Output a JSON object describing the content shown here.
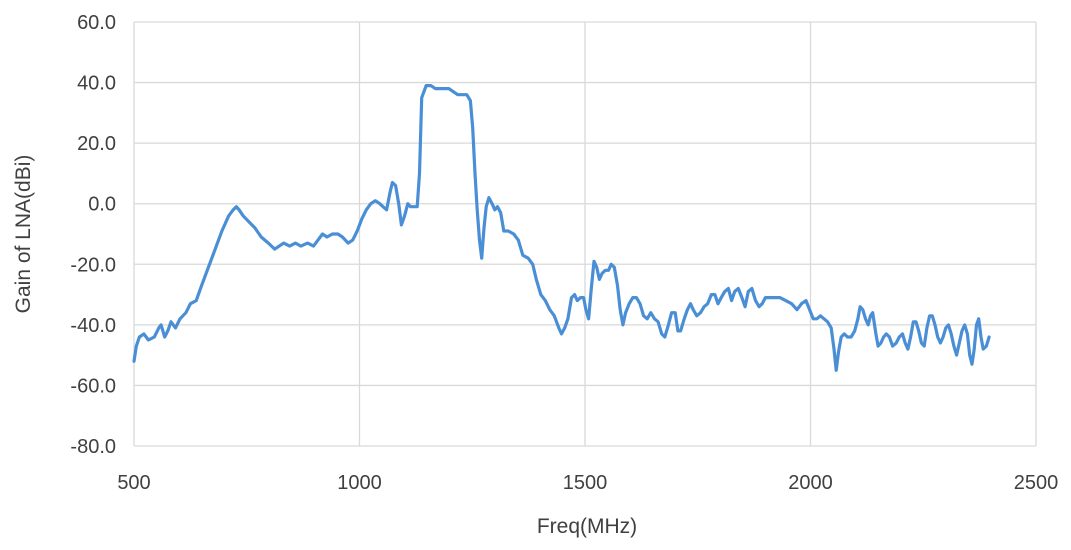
{
  "chart_data": {
    "type": "line",
    "title": "",
    "xlabel": "Freq(MHz)",
    "ylabel": "Gain of LNA(dBi)",
    "xlim": [
      500,
      2500
    ],
    "ylim": [
      -80,
      60
    ],
    "x_ticks": [
      500,
      1000,
      1500,
      2000,
      2500
    ],
    "x_tick_labels": [
      "500",
      "1000",
      "1500",
      "2000",
      "2500"
    ],
    "y_ticks": [
      60,
      40,
      20,
      0,
      -20,
      -40,
      -60,
      -80
    ],
    "y_tick_labels": [
      "60.0",
      "40.0",
      "20.0",
      "0.0",
      "-20.0",
      "-40.0",
      "-60.0",
      "-80.0"
    ],
    "grid": true,
    "legend": "none",
    "colors": {
      "line": "#4a8fd6",
      "grid": "#d9d9d9",
      "text": "#404040"
    },
    "series": [
      {
        "points": [
          [
            500,
            -52
          ],
          [
            505,
            -47
          ],
          [
            512,
            -44
          ],
          [
            522,
            -43
          ],
          [
            532,
            -45
          ],
          [
            545,
            -44
          ],
          [
            555,
            -41
          ],
          [
            560,
            -40
          ],
          [
            568,
            -44
          ],
          [
            575,
            -42
          ],
          [
            582,
            -39
          ],
          [
            592,
            -41
          ],
          [
            602,
            -38
          ],
          [
            615,
            -36
          ],
          [
            625,
            -33
          ],
          [
            638,
            -32
          ],
          [
            650,
            -27
          ],
          [
            665,
            -21
          ],
          [
            680,
            -15
          ],
          [
            695,
            -9
          ],
          [
            710,
            -4
          ],
          [
            720,
            -2
          ],
          [
            727,
            -1
          ],
          [
            733,
            -2
          ],
          [
            742,
            -4
          ],
          [
            755,
            -6
          ],
          [
            768,
            -8
          ],
          [
            782,
            -11
          ],
          [
            798,
            -13
          ],
          [
            812,
            -15
          ],
          [
            822,
            -14
          ],
          [
            832,
            -13
          ],
          [
            845,
            -14
          ],
          [
            858,
            -13
          ],
          [
            870,
            -14
          ],
          [
            885,
            -13
          ],
          [
            898,
            -14
          ],
          [
            908,
            -12
          ],
          [
            918,
            -10
          ],
          [
            928,
            -11
          ],
          [
            940,
            -10
          ],
          [
            952,
            -10
          ],
          [
            962,
            -11
          ],
          [
            975,
            -13
          ],
          [
            985,
            -12
          ],
          [
            995,
            -9
          ],
          [
            1005,
            -5
          ],
          [
            1015,
            -2
          ],
          [
            1025,
            0
          ],
          [
            1035,
            1
          ],
          [
            1045,
            0
          ],
          [
            1052,
            -1
          ],
          [
            1060,
            -2
          ],
          [
            1068,
            4
          ],
          [
            1073,
            7
          ],
          [
            1080,
            6
          ],
          [
            1087,
            0
          ],
          [
            1093,
            -7
          ],
          [
            1100,
            -4
          ],
          [
            1107,
            0
          ],
          [
            1113,
            -1
          ],
          [
            1120,
            -1
          ],
          [
            1128,
            -1
          ],
          [
            1133,
            10
          ],
          [
            1138,
            35
          ],
          [
            1148,
            39
          ],
          [
            1158,
            39
          ],
          [
            1168,
            38
          ],
          [
            1178,
            38
          ],
          [
            1188,
            38
          ],
          [
            1198,
            38
          ],
          [
            1208,
            37
          ],
          [
            1218,
            36
          ],
          [
            1228,
            36
          ],
          [
            1238,
            36
          ],
          [
            1246,
            34
          ],
          [
            1251,
            25
          ],
          [
            1256,
            10
          ],
          [
            1261,
            -2
          ],
          [
            1266,
            -12
          ],
          [
            1271,
            -18
          ],
          [
            1276,
            -8
          ],
          [
            1281,
            -1
          ],
          [
            1287,
            2
          ],
          [
            1294,
            0
          ],
          [
            1300,
            -2
          ],
          [
            1306,
            -1
          ],
          [
            1313,
            -3
          ],
          [
            1320,
            -9
          ],
          [
            1330,
            -9
          ],
          [
            1342,
            -10
          ],
          [
            1352,
            -12
          ],
          [
            1362,
            -17
          ],
          [
            1374,
            -18
          ],
          [
            1384,
            -20
          ],
          [
            1392,
            -25
          ],
          [
            1402,
            -30
          ],
          [
            1412,
            -32
          ],
          [
            1422,
            -35
          ],
          [
            1432,
            -37
          ],
          [
            1442,
            -41
          ],
          [
            1448,
            -43
          ],
          [
            1455,
            -41
          ],
          [
            1462,
            -38
          ],
          [
            1470,
            -31
          ],
          [
            1477,
            -30
          ],
          [
            1483,
            -32
          ],
          [
            1490,
            -31
          ],
          [
            1497,
            -31
          ],
          [
            1502,
            -35
          ],
          [
            1508,
            -38
          ],
          [
            1514,
            -28
          ],
          [
            1520,
            -19
          ],
          [
            1526,
            -21
          ],
          [
            1532,
            -25
          ],
          [
            1538,
            -23
          ],
          [
            1545,
            -22
          ],
          [
            1552,
            -22
          ],
          [
            1558,
            -20
          ],
          [
            1565,
            -21
          ],
          [
            1572,
            -27
          ],
          [
            1578,
            -35
          ],
          [
            1584,
            -40
          ],
          [
            1590,
            -36
          ],
          [
            1598,
            -33
          ],
          [
            1606,
            -31
          ],
          [
            1614,
            -31
          ],
          [
            1622,
            -33
          ],
          [
            1630,
            -37
          ],
          [
            1638,
            -38
          ],
          [
            1646,
            -36
          ],
          [
            1654,
            -38
          ],
          [
            1662,
            -39
          ],
          [
            1670,
            -43
          ],
          [
            1677,
            -44
          ],
          [
            1685,
            -40
          ],
          [
            1692,
            -36
          ],
          [
            1700,
            -36
          ],
          [
            1706,
            -42
          ],
          [
            1712,
            -42
          ],
          [
            1720,
            -38
          ],
          [
            1727,
            -35
          ],
          [
            1734,
            -33
          ],
          [
            1740,
            -35
          ],
          [
            1748,
            -37
          ],
          [
            1756,
            -36
          ],
          [
            1764,
            -34
          ],
          [
            1772,
            -33
          ],
          [
            1780,
            -30
          ],
          [
            1788,
            -30
          ],
          [
            1795,
            -33
          ],
          [
            1802,
            -31
          ],
          [
            1810,
            -29
          ],
          [
            1818,
            -28
          ],
          [
            1825,
            -32
          ],
          [
            1832,
            -29
          ],
          [
            1840,
            -28
          ],
          [
            1848,
            -31
          ],
          [
            1855,
            -34
          ],
          [
            1862,
            -29
          ],
          [
            1870,
            -28
          ],
          [
            1878,
            -32
          ],
          [
            1886,
            -34
          ],
          [
            1893,
            -33
          ],
          [
            1900,
            -31
          ],
          [
            1910,
            -31
          ],
          [
            1920,
            -31
          ],
          [
            1932,
            -31
          ],
          [
            1945,
            -32
          ],
          [
            1958,
            -33
          ],
          [
            1970,
            -35
          ],
          [
            1980,
            -33
          ],
          [
            1990,
            -32
          ],
          [
            1998,
            -35
          ],
          [
            2006,
            -38
          ],
          [
            2014,
            -38
          ],
          [
            2022,
            -37
          ],
          [
            2030,
            -38
          ],
          [
            2038,
            -39
          ],
          [
            2046,
            -41
          ],
          [
            2052,
            -48
          ],
          [
            2057,
            -55
          ],
          [
            2062,
            -49
          ],
          [
            2068,
            -44
          ],
          [
            2075,
            -43
          ],
          [
            2082,
            -44
          ],
          [
            2090,
            -44
          ],
          [
            2098,
            -42
          ],
          [
            2105,
            -38
          ],
          [
            2110,
            -34
          ],
          [
            2116,
            -35
          ],
          [
            2122,
            -38
          ],
          [
            2128,
            -40
          ],
          [
            2133,
            -37
          ],
          [
            2138,
            -36
          ],
          [
            2145,
            -43
          ],
          [
            2150,
            -47
          ],
          [
            2156,
            -46
          ],
          [
            2162,
            -44
          ],
          [
            2168,
            -43
          ],
          [
            2175,
            -44
          ],
          [
            2182,
            -47
          ],
          [
            2190,
            -46
          ],
          [
            2197,
            -44
          ],
          [
            2204,
            -43
          ],
          [
            2210,
            -46
          ],
          [
            2216,
            -48
          ],
          [
            2222,
            -44
          ],
          [
            2228,
            -39
          ],
          [
            2234,
            -39
          ],
          [
            2240,
            -42
          ],
          [
            2246,
            -46
          ],
          [
            2252,
            -47
          ],
          [
            2258,
            -41
          ],
          [
            2264,
            -37
          ],
          [
            2270,
            -37
          ],
          [
            2276,
            -40
          ],
          [
            2282,
            -44
          ],
          [
            2288,
            -46
          ],
          [
            2294,
            -44
          ],
          [
            2300,
            -41
          ],
          [
            2306,
            -40
          ],
          [
            2312,
            -43
          ],
          [
            2318,
            -47
          ],
          [
            2324,
            -50
          ],
          [
            2330,
            -46
          ],
          [
            2336,
            -42
          ],
          [
            2342,
            -40
          ],
          [
            2348,
            -43
          ],
          [
            2353,
            -50
          ],
          [
            2358,
            -53
          ],
          [
            2363,
            -48
          ],
          [
            2368,
            -40
          ],
          [
            2373,
            -38
          ],
          [
            2378,
            -44
          ],
          [
            2383,
            -48
          ],
          [
            2390,
            -47
          ],
          [
            2396,
            -44
          ]
        ]
      }
    ]
  }
}
